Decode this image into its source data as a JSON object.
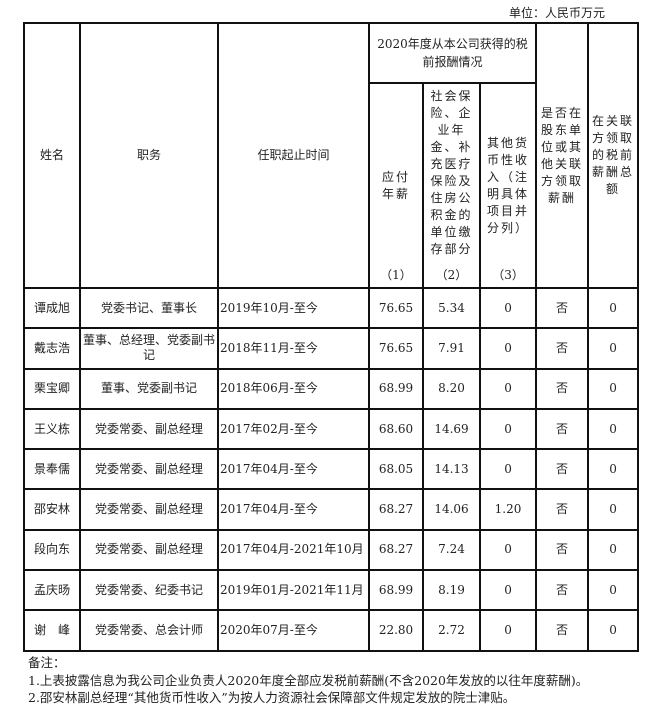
{
  "unit_label": "单位：人民币万元",
  "headers": {
    "name": "姓名",
    "position": "职务",
    "tenure": "任职起止时间",
    "group": "2020年度从本公司获得的税前报酬情况",
    "salary": "应付年薪",
    "salary_idx": "（1）",
    "social": "社会保险、企业年金、补充医疗保险及住房公积金的单位缴存部分",
    "social_idx": "（2）",
    "other": "其他货币性收入（注明具体项目并分列）",
    "other_idx": "（3）",
    "related_flag": "是否在股东单位或其他关联方领取薪酬",
    "related_total": "在关联方领取的税前薪酬总额"
  },
  "rows": [
    {
      "name": "谭成旭",
      "position": "党委书记、董事长",
      "tenure": "2019年10月-至今",
      "salary": "76.65",
      "social": "5.34",
      "other": "0",
      "related_flag": "否",
      "related_total": "0"
    },
    {
      "name": "戴志浩",
      "position": "董事、总经理、党委副书记",
      "tenure": "2018年11月-至今",
      "salary": "76.65",
      "social": "7.91",
      "other": "0",
      "related_flag": "否",
      "related_total": "0"
    },
    {
      "name": "栗宝卿",
      "position": "董事、党委副书记",
      "tenure": "2018年06月-至今",
      "salary": "68.99",
      "social": "8.20",
      "other": "0",
      "related_flag": "否",
      "related_total": "0"
    },
    {
      "name": "王义栋",
      "position": "党委常委、副总经理",
      "tenure": "2017年02月-至今",
      "salary": "68.60",
      "social": "14.69",
      "other": "0",
      "related_flag": "否",
      "related_total": "0"
    },
    {
      "name": "景奉儒",
      "position": "党委常委、副总经理",
      "tenure": "2017年04月-至今",
      "salary": "68.05",
      "social": "14.13",
      "other": "0",
      "related_flag": "否",
      "related_total": "0"
    },
    {
      "name": "邵安林",
      "position": "党委常委、副总经理",
      "tenure": "2017年04月-至今",
      "salary": "68.27",
      "social": "14.06",
      "other": "1.20",
      "related_flag": "否",
      "related_total": "0"
    },
    {
      "name": "段向东",
      "position": "党委常委、副总经理",
      "tenure": "2017年04月-2021年10月",
      "salary": "68.27",
      "social": "7.24",
      "other": "0",
      "related_flag": "否",
      "related_total": "0"
    },
    {
      "name": "孟庆旸",
      "position": "党委常委、纪委书记",
      "tenure": "2019年01月-2021年11月",
      "salary": "68.99",
      "social": "8.19",
      "other": "0",
      "related_flag": "否",
      "related_total": "0"
    },
    {
      "name": "谢　峰",
      "position": "党委常委、总会计师",
      "tenure": "2020年07月-至今",
      "salary": "22.80",
      "social": "2.72",
      "other": "0",
      "related_flag": "否",
      "related_total": "0"
    }
  ],
  "notes": {
    "title": "备注：",
    "items": [
      "1.上表披露信息为我公司企业负责人2020年度全部应发税前薪酬(不含2020年发放的以往年度薪酬)。",
      "2.邵安林副总经理“其他货币性收入”为按人力资源社会保障部文件规定发放的院士津贴。"
    ]
  }
}
